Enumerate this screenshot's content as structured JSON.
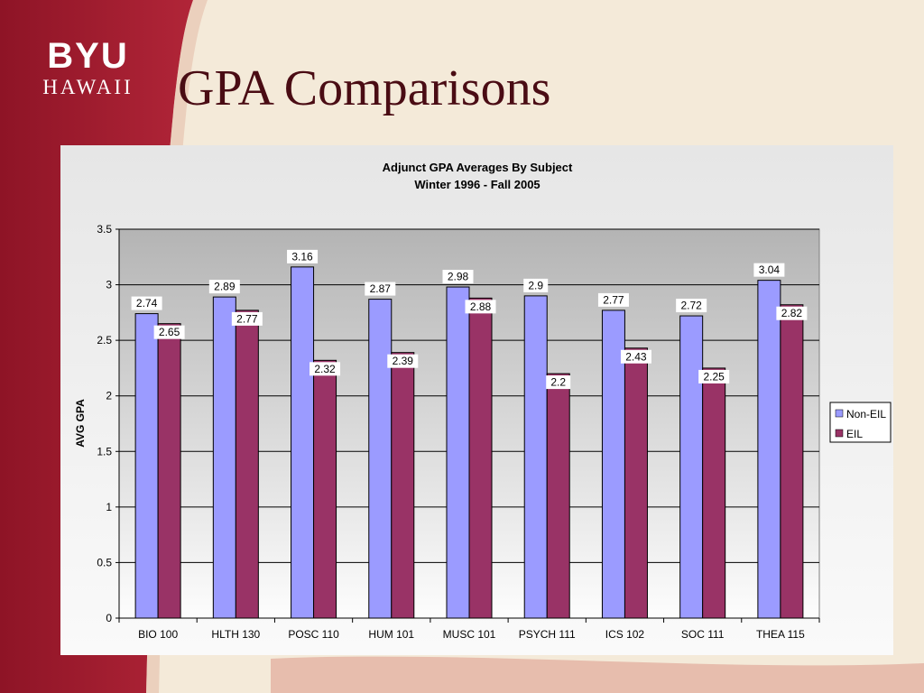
{
  "slide": {
    "title": "GPA Comparisons",
    "logo_top": "BYU",
    "logo_bottom": "HAWAII"
  },
  "colors": {
    "brand_red": "#a51c30",
    "non_eil": "#9b9bff",
    "eil": "#993366",
    "title": "#4a0c14"
  },
  "chart_data": {
    "type": "bar",
    "title": "Adjunct GPA Averages By Subject",
    "subtitle": "Winter 1996 - Fall 2005",
    "xlabel": "",
    "ylabel": "AVG GPA",
    "ylim": [
      0,
      3.5
    ],
    "yticks": [
      "0",
      "0.5",
      "1",
      "1.5",
      "2",
      "2.5",
      "3",
      "3.5"
    ],
    "grid": true,
    "legend_position": "right",
    "categories": [
      "BIO 100",
      "HLTH 130",
      "POSC 110",
      "HUM 101",
      "MUSC 101",
      "PSYCH 111",
      "ICS 102",
      "SOC 111",
      "THEA 115"
    ],
    "series": [
      {
        "name": "Non-EIL",
        "color": "#9b9bff",
        "values": [
          2.74,
          2.89,
          3.16,
          2.87,
          2.98,
          2.9,
          2.77,
          2.72,
          3.04
        ],
        "labels": [
          "2.74",
          "2.89",
          "3.16",
          "2.87",
          "2.98",
          "2.9",
          "2.77",
          "2.72",
          "3.04"
        ]
      },
      {
        "name": "EIL",
        "color": "#993366",
        "values": [
          2.65,
          2.77,
          2.32,
          2.39,
          2.88,
          2.2,
          2.43,
          2.25,
          2.82
        ],
        "labels": [
          "2.65",
          "2.77",
          "2.32",
          "2.39",
          "2.88",
          "2.2",
          "2.43",
          "2.25",
          "2.82"
        ]
      }
    ]
  }
}
